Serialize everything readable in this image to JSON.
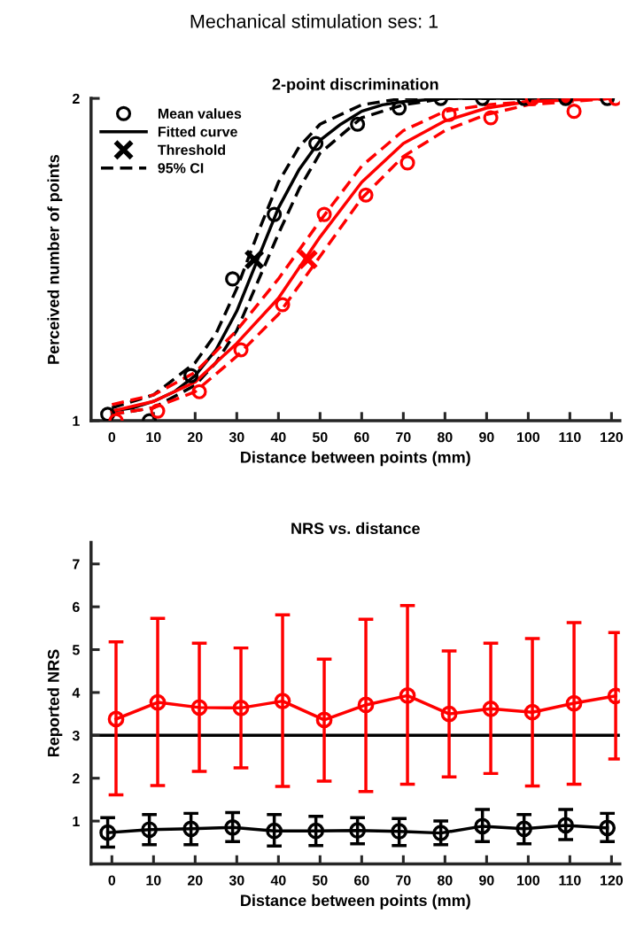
{
  "chart_data": [
    {
      "type": "scatter",
      "title": "2-point discrimination",
      "xlabel": "Distance between points (mm)",
      "ylabel": "Perceived number of points",
      "annotations": [
        "Mechanical stimulation ses: 1"
      ],
      "xlim": [
        -5,
        122
      ],
      "xticks": [
        0,
        10,
        20,
        30,
        40,
        50,
        60,
        70,
        80,
        90,
        100,
        110,
        120
      ],
      "ylim": [
        1,
        2
      ],
      "yticks": [
        1,
        2
      ],
      "grid": false,
      "legend": "top left",
      "series": [
        {
          "name": "Mean values",
          "type": "scatter",
          "marker": "circle",
          "color": "#000000",
          "x": [
            -1,
            9,
            19,
            29,
            39,
            49,
            59,
            69,
            79,
            89,
            99,
            109,
            119
          ],
          "values": [
            1.02,
            1.0,
            1.14,
            1.44,
            1.64,
            1.86,
            1.92,
            1.97,
            2.0,
            2.0,
            2.0,
            2.0,
            2.0
          ]
        },
        {
          "name": "Fitted curve",
          "type": "line",
          "line_style": "solid",
          "color": "#000000",
          "x": [
            0,
            5,
            10,
            15,
            20,
            25,
            30,
            35,
            40,
            45,
            50,
            55,
            60,
            65,
            70,
            80,
            120
          ],
          "values": [
            1.03,
            1.04,
            1.06,
            1.09,
            1.14,
            1.22,
            1.34,
            1.5,
            1.66,
            1.78,
            1.87,
            1.92,
            1.96,
            1.98,
            1.99,
            2.0,
            2.0
          ]
        },
        {
          "name": "Threshold",
          "type": "scatter",
          "marker": "cross",
          "color": "#000000",
          "x": [
            34.2
          ],
          "values": [
            1.5
          ]
        },
        {
          "name": "95% CI",
          "type": "line",
          "line_style": "dashed",
          "color": "#000000",
          "x": [
            0,
            10,
            20,
            25,
            30,
            35,
            40,
            45,
            50,
            60,
            70,
            120
          ],
          "values": [
            1.04,
            1.08,
            1.18,
            1.27,
            1.41,
            1.58,
            1.74,
            1.85,
            1.92,
            1.98,
            2.0,
            2.0
          ]
        },
        {
          "type": "line",
          "line_style": "dashed",
          "color": "#000000",
          "x": [
            0,
            10,
            20,
            25,
            30,
            35,
            40,
            45,
            50,
            60,
            70,
            80,
            120
          ],
          "values": [
            1.02,
            1.04,
            1.11,
            1.18,
            1.28,
            1.43,
            1.58,
            1.72,
            1.83,
            1.94,
            1.98,
            2.0,
            2.0
          ]
        },
        {
          "type": "scatter",
          "marker": "circle",
          "color": "#ff0000",
          "x": [
            1,
            11,
            21,
            31,
            41,
            51,
            61,
            71,
            81,
            91,
            101,
            111,
            121
          ],
          "values": [
            1.0,
            1.03,
            1.09,
            1.22,
            1.36,
            1.64,
            1.7,
            1.8,
            1.95,
            1.94,
            2.0,
            1.96,
            2.0
          ]
        },
        {
          "type": "line",
          "line_style": "solid",
          "color": "#ff0000",
          "x": [
            0,
            10,
            20,
            30,
            40,
            50,
            60,
            70,
            80,
            90,
            100,
            120
          ],
          "values": [
            1.03,
            1.06,
            1.12,
            1.24,
            1.38,
            1.57,
            1.74,
            1.86,
            1.93,
            1.97,
            1.99,
            2.0
          ]
        },
        {
          "type": "scatter",
          "marker": "cross",
          "color": "#ff0000",
          "x": [
            47.1
          ],
          "values": [
            1.5
          ]
        },
        {
          "type": "line",
          "line_style": "dashed",
          "color": "#ff0000",
          "x": [
            0,
            10,
            20,
            30,
            40,
            45,
            50,
            60,
            70,
            80,
            90,
            100,
            120
          ],
          "values": [
            1.05,
            1.08,
            1.15,
            1.28,
            1.44,
            1.53,
            1.62,
            1.79,
            1.9,
            1.96,
            1.98,
            1.99,
            2.0
          ]
        },
        {
          "type": "line",
          "line_style": "dashed",
          "color": "#ff0000",
          "x": [
            0,
            10,
            20,
            30,
            40,
            50,
            60,
            70,
            80,
            90,
            100,
            120
          ],
          "values": [
            1.02,
            1.04,
            1.09,
            1.2,
            1.33,
            1.51,
            1.69,
            1.82,
            1.9,
            1.95,
            1.98,
            2.0
          ]
        }
      ]
    },
    {
      "type": "line",
      "title": "NRS vs. distance",
      "xlabel": "Distance between points (mm)",
      "ylabel": "Reported NRS",
      "xlim": [
        -5,
        122
      ],
      "xticks": [
        0,
        10,
        20,
        30,
        40,
        50,
        60,
        70,
        80,
        90,
        100,
        110,
        120
      ],
      "ylim": [
        0,
        7.5
      ],
      "yticks": [
        1,
        2,
        3,
        4,
        5,
        6,
        7
      ],
      "grid": false,
      "marker": "circle",
      "line_style": "solid",
      "ref_lines": [
        {
          "axis": "y",
          "value": 3,
          "color": "#000000"
        }
      ],
      "series": [
        {
          "color": "#ff0000",
          "x": [
            1,
            11,
            21,
            31,
            41,
            51,
            61,
            71,
            81,
            91,
            101,
            111,
            121
          ],
          "values": [
            3.38,
            3.77,
            3.65,
            3.64,
            3.8,
            3.36,
            3.71,
            3.93,
            3.5,
            3.62,
            3.54,
            3.75,
            3.92
          ],
          "errors": [
            [
              1.61,
              5.18
            ],
            [
              1.83,
              5.73
            ],
            [
              2.16,
              5.15
            ],
            [
              2.24,
              5.04
            ],
            [
              1.81,
              5.81
            ],
            [
              1.93,
              4.78
            ],
            [
              1.69,
              5.71
            ],
            [
              1.86,
              6.03
            ],
            [
              2.03,
              4.97
            ],
            [
              2.11,
              5.15
            ],
            [
              1.82,
              5.26
            ],
            [
              1.86,
              5.63
            ],
            [
              2.45,
              5.4
            ]
          ]
        },
        {
          "color": "#000000",
          "x": [
            -1,
            9,
            19,
            29,
            39,
            49,
            59,
            69,
            79,
            89,
            99,
            109,
            119
          ],
          "values": [
            0.73,
            0.8,
            0.82,
            0.85,
            0.77,
            0.77,
            0.78,
            0.76,
            0.72,
            0.88,
            0.82,
            0.9,
            0.84
          ],
          "errors": [
            [
              0.39,
              1.08
            ],
            [
              0.45,
              1.15
            ],
            [
              0.45,
              1.18
            ],
            [
              0.52,
              1.2
            ],
            [
              0.42,
              1.15
            ],
            [
              0.43,
              1.11
            ],
            [
              0.47,
              1.08
            ],
            [
              0.43,
              1.06
            ],
            [
              0.45,
              1.0
            ],
            [
              0.52,
              1.27
            ],
            [
              0.47,
              1.15
            ],
            [
              0.57,
              1.27
            ],
            [
              0.52,
              1.18
            ]
          ]
        }
      ]
    }
  ]
}
